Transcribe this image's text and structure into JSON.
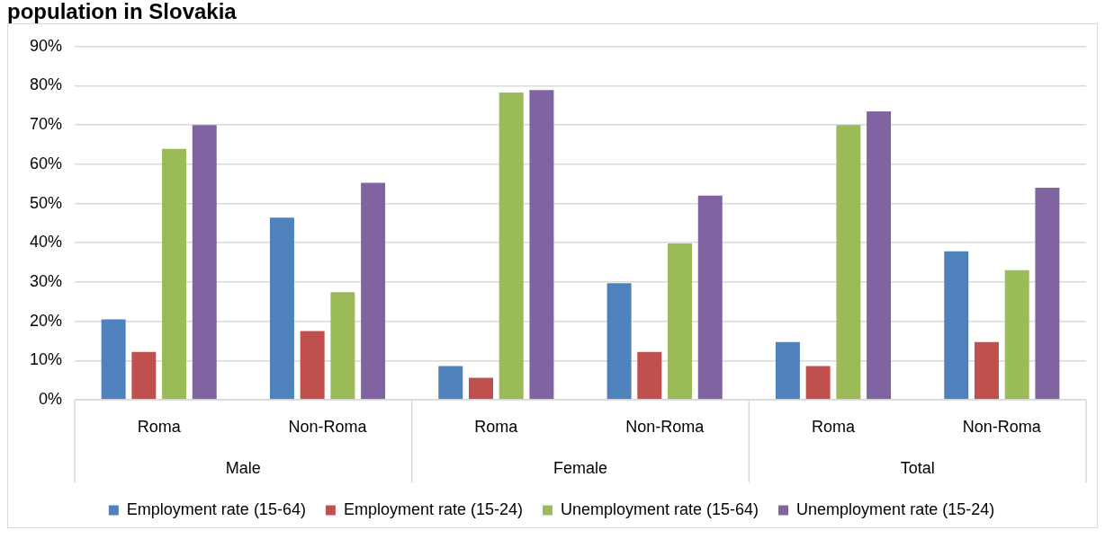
{
  "chart_data": {
    "type": "bar",
    "title": "population in Slovakia",
    "categories": [
      "Roma",
      "Non-Roma",
      "Roma",
      "Non-Roma",
      "Roma",
      "Non-Roma"
    ],
    "annotations": [
      "Male",
      "Female",
      "Total"
    ],
    "series": [
      {
        "name": "Employment rate (15-64)",
        "color": "#4f81bd",
        "values": [
          20.5,
          46.4,
          8.6,
          29.7,
          14.7,
          37.8
        ]
      },
      {
        "name": "Employment rate (15-24)",
        "color": "#c0504d",
        "values": [
          12.2,
          17.5,
          5.6,
          12.2,
          8.6,
          14.7
        ]
      },
      {
        "name": "Unemployment rate (15-64)",
        "color": "#9bbb59",
        "values": [
          63.9,
          27.4,
          78.3,
          39.8,
          70.0,
          33.0
        ]
      },
      {
        "name": "Unemployment rate (15-24)",
        "color": "#8064a2",
        "values": [
          70.0,
          55.3,
          78.9,
          52.0,
          73.5,
          54.0
        ]
      }
    ],
    "ylim": [
      0,
      90
    ],
    "yticks": [
      {
        "value": 0,
        "label": "0%"
      },
      {
        "value": 10,
        "label": "10%"
      },
      {
        "value": 20,
        "label": "20%"
      },
      {
        "value": 30,
        "label": "30%"
      },
      {
        "value": 40,
        "label": "40%"
      },
      {
        "value": 50,
        "label": "50%"
      },
      {
        "value": 60,
        "label": "60%"
      },
      {
        "value": 70,
        "label": "70%"
      },
      {
        "value": 80,
        "label": "80%"
      },
      {
        "value": 90,
        "label": "90%"
      }
    ],
    "grid": "y",
    "legend": "bottom"
  }
}
